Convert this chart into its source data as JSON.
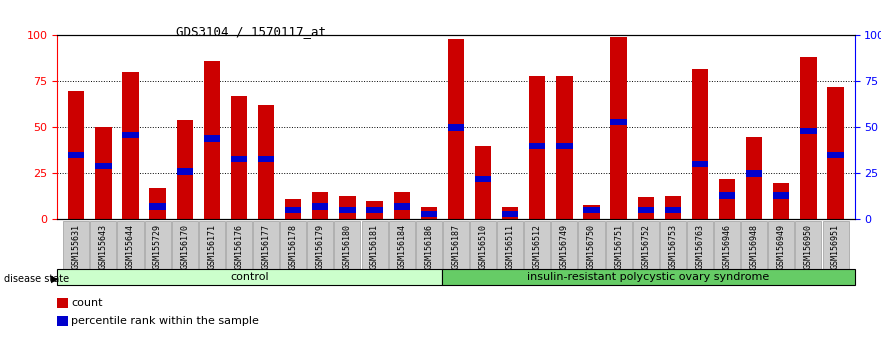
{
  "title": "GDS3104 / 1570117_at",
  "samples": [
    "GSM155631",
    "GSM155643",
    "GSM155644",
    "GSM155729",
    "GSM156170",
    "GSM156171",
    "GSM156176",
    "GSM156177",
    "GSM156178",
    "GSM156179",
    "GSM156180",
    "GSM156181",
    "GSM156184",
    "GSM156186",
    "GSM156187",
    "GSM156510",
    "GSM156511",
    "GSM156512",
    "GSM156749",
    "GSM156750",
    "GSM156751",
    "GSM156752",
    "GSM156753",
    "GSM156763",
    "GSM156946",
    "GSM156948",
    "GSM156949",
    "GSM156950",
    "GSM156951"
  ],
  "count_values": [
    70,
    50,
    80,
    17,
    54,
    86,
    67,
    62,
    11,
    15,
    13,
    10,
    15,
    7,
    98,
    40,
    7,
    78,
    78,
    8,
    99,
    12,
    13,
    82,
    22,
    45,
    20,
    88,
    72
  ],
  "percentile_values": [
    35,
    29,
    46,
    7,
    26,
    44,
    33,
    33,
    5,
    7,
    5,
    5,
    7,
    3,
    50,
    22,
    3,
    40,
    40,
    5,
    53,
    5,
    5,
    30,
    13,
    25,
    13,
    48,
    35
  ],
  "control_count": 14,
  "disease_label": "insulin-resistant polycystic ovary syndrome",
  "control_label": "control",
  "bar_color": "#cc0000",
  "percentile_color": "#0000cc",
  "control_bg": "#ccffcc",
  "disease_bg": "#66cc66",
  "tick_bg": "#cccccc",
  "ylim": [
    0,
    100
  ],
  "legend_count": "count",
  "legend_percentile": "percentile rank within the sample",
  "disease_state_label": "disease state"
}
